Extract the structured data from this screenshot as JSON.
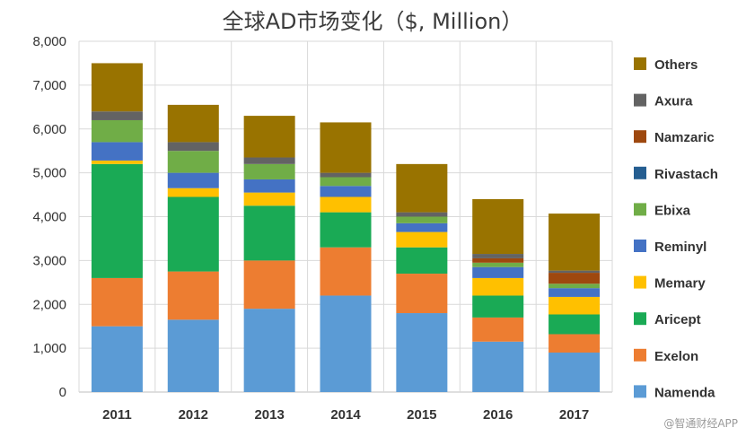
{
  "watermark": "@智通财经APP",
  "chart_data": {
    "type": "bar",
    "stacked": true,
    "title": "全球AD市场变化（$, Million）",
    "xlabel": "",
    "ylabel": "",
    "ylim": [
      0,
      8000
    ],
    "yticks": [
      0,
      1000,
      2000,
      3000,
      4000,
      5000,
      6000,
      7000,
      8000
    ],
    "ytick_labels": [
      "0",
      "1,000",
      "2,000",
      "3,000",
      "4,000",
      "5,000",
      "6,000",
      "7,000",
      "8,000"
    ],
    "grid": true,
    "legend_position": "right",
    "categories": [
      "2011",
      "2012",
      "2013",
      "2014",
      "2015",
      "2016",
      "2017"
    ],
    "series": [
      {
        "name": "Namenda",
        "color": "#5b9bd5",
        "values": [
          1500,
          1650,
          1900,
          2200,
          1800,
          1150,
          900
        ]
      },
      {
        "name": "Exelon",
        "color": "#ed7d31",
        "values": [
          1100,
          1100,
          1100,
          1100,
          900,
          550,
          420
        ]
      },
      {
        "name": "Aricept",
        "color": "#1aaa55",
        "values": [
          2600,
          1700,
          1250,
          800,
          600,
          500,
          450
        ]
      },
      {
        "name": "Memary",
        "color": "#ffc000",
        "values": [
          80,
          200,
          300,
          350,
          350,
          400,
          400
        ]
      },
      {
        "name": "Reminyl",
        "color": "#4472c4",
        "values": [
          420,
          350,
          300,
          250,
          200,
          250,
          200
        ]
      },
      {
        "name": "Ebixa",
        "color": "#70ad47",
        "values": [
          500,
          500,
          350,
          200,
          150,
          100,
          100
        ]
      },
      {
        "name": "Rivastach",
        "color": "#255e91",
        "values": [
          0,
          0,
          0,
          0,
          0,
          0,
          0
        ]
      },
      {
        "name": "Namzaric",
        "color": "#9e480e",
        "values": [
          0,
          0,
          0,
          0,
          0,
          100,
          250
        ]
      },
      {
        "name": "Axura",
        "color": "#636363",
        "values": [
          200,
          200,
          150,
          100,
          100,
          100,
          50
        ]
      },
      {
        "name": "Others",
        "color": "#997300",
        "values": [
          1100,
          850,
          950,
          1150,
          1100,
          1250,
          1300
        ]
      }
    ]
  }
}
